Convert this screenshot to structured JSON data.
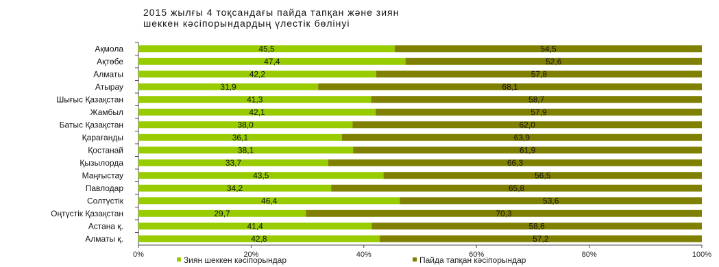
{
  "title_lines": [
    "2015 жылғы 4 тоқсандағы пайда тапқан және зиян",
    "шеккен кәсіпорындардың үлестік бөлінуі"
  ],
  "colors": {
    "loss": "#99cc00",
    "profit": "#808000"
  },
  "chart_data": {
    "type": "bar",
    "orientation": "horizontal",
    "stacked": true,
    "percent": true,
    "title": "2015 жылғы 4 тоқсандағы пайда тапқан және зиян шеккен кәсіпорындардың үлестік бөлінуі",
    "categories": [
      "Ақмола",
      "Ақтөбе",
      "Алматы",
      "Атырау",
      "Шығыс Қазақстан",
      "Жамбыл",
      "Батыс Қазақстан",
      "Қарағанды",
      "Қостанай",
      "Қызылорда",
      "Маңғыстау",
      "Павлодар",
      "Солтүстік",
      "Оңтүстік Қазақстан",
      "Астана қ.",
      "Алматы қ."
    ],
    "series": [
      {
        "name": "Зиян шеккен кәсіпорындар",
        "values": [
          "45,5",
          "47,4",
          "42,2",
          "31,9",
          "41,3",
          "42,1",
          "38,0",
          "36,1",
          "38,1",
          "33,7",
          "43,5",
          "34,2",
          "46,4",
          "29,7",
          "41,4",
          "42,8"
        ]
      },
      {
        "name": "Пайда тапқан кәсіпорындар",
        "values": [
          "54,5",
          "52,6",
          "57,8",
          "68,1",
          "58,7",
          "57,9",
          "62,0",
          "63,9",
          "61,9",
          "66,3",
          "56,5",
          "65,8",
          "53,6",
          "70,3",
          "58,6",
          "57,2"
        ]
      }
    ],
    "xticks": [
      "0%",
      "20%",
      "40%",
      "60%",
      "80%",
      "100%"
    ],
    "xlim": [
      0,
      100
    ],
    "legend": "bottom"
  }
}
